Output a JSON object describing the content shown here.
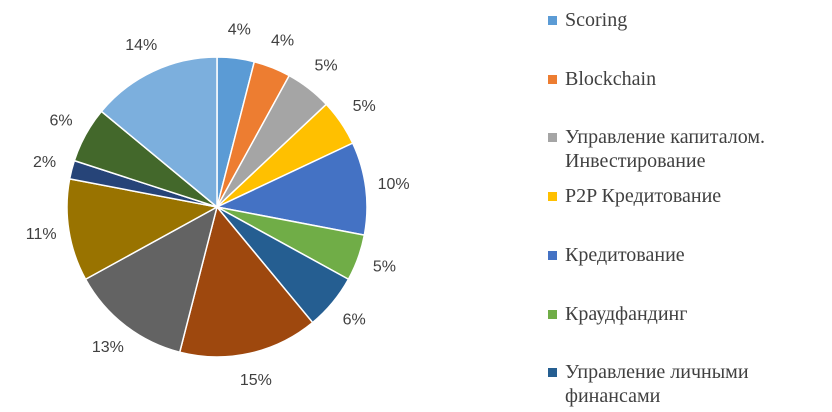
{
  "chart_data": {
    "type": "pie",
    "categories": [
      "Scoring",
      "Blockchain",
      "Управление капиталом. Инвестирование",
      "P2P Кредитование",
      "Кредитование",
      "Краудфандинг",
      "Управление личными финансами",
      null,
      null,
      null,
      null,
      null,
      null
    ],
    "values": [
      4,
      4,
      5,
      5,
      10,
      5,
      6,
      15,
      13,
      11,
      2,
      6,
      14
    ],
    "value_labels": [
      "4%",
      "4%",
      "5%",
      "5%",
      "10%",
      "5%",
      "6%",
      "15%",
      "13%",
      "11%",
      "2%",
      "6%",
      "14%"
    ],
    "colors": [
      "#5b9bd5",
      "#ed7d31",
      "#a5a5a5",
      "#ffc000",
      "#4472c4",
      "#70ad47",
      "#255e91",
      "#9e480e",
      "#636363",
      "#997300",
      "#264478",
      "#43682b",
      "#7cafdd"
    ],
    "legend": "right"
  }
}
